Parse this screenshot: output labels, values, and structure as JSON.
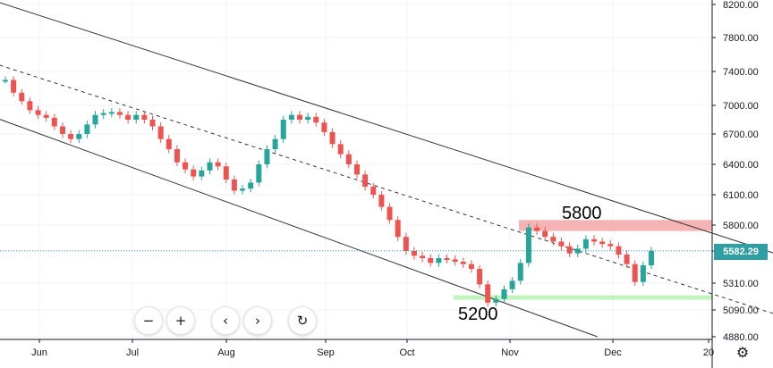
{
  "chart_data": {
    "type": "candlestick",
    "title": "",
    "xlabel": "",
    "ylabel": "",
    "price_axis": {
      "ticks": [
        4880,
        5090,
        5310,
        5580,
        5800,
        6100,
        6400,
        6700,
        7000,
        7400,
        7800,
        8200
      ],
      "tick_labels": [
        "4880.00",
        "5090.00",
        "5310.00",
        "5580.00",
        "5800.00",
        "6100.00",
        "6400.00",
        "6700.00",
        "7000.00",
        "7400.00",
        "7800.00",
        "8200.00"
      ],
      "scale": "log"
    },
    "time_axis": {
      "labels": [
        "Jun",
        "Jul",
        "Aug",
        "Sep",
        "Oct",
        "Nov",
        "Dec",
        "20"
      ]
    },
    "last_price": 5582.29,
    "last_price_label": "5582.29",
    "zones": [
      {
        "label": "5800",
        "low": 5750,
        "high": 5850,
        "color": "#f4a6a6"
      },
      {
        "label": "5200",
        "low": 5175,
        "high": 5210,
        "color": "#b6f2b0"
      }
    ],
    "trendlines": [
      {
        "style": "solid",
        "from": [
          0.5,
          8250
        ],
        "to": [
          9.6,
          5335
        ]
      },
      {
        "style": "dashed",
        "from": [
          0.5,
          7500
        ],
        "to": [
          9.6,
          4850
        ]
      },
      {
        "style": "solid",
        "from": [
          0.5,
          6880
        ],
        "to": [
          6.85,
          4880
        ]
      }
    ],
    "candles": [
      [
        7300,
        7300
      ],
      [
        7300,
        7150
      ],
      [
        7150,
        7050
      ],
      [
        7050,
        6950
      ],
      [
        6950,
        6900
      ],
      [
        6900,
        6870
      ],
      [
        6870,
        6780
      ],
      [
        6780,
        6700
      ],
      [
        6700,
        6650
      ],
      [
        6650,
        6700
      ],
      [
        6700,
        6800
      ],
      [
        6800,
        6900
      ],
      [
        6900,
        6920
      ],
      [
        6920,
        6930
      ],
      [
        6930,
        6900
      ],
      [
        6900,
        6850
      ],
      [
        6850,
        6900
      ],
      [
        6900,
        6850
      ],
      [
        6850,
        6780
      ],
      [
        6780,
        6650
      ],
      [
        6650,
        6550
      ],
      [
        6550,
        6420
      ],
      [
        6420,
        6350
      ],
      [
        6350,
        6280
      ],
      [
        6280,
        6340
      ],
      [
        6340,
        6420
      ],
      [
        6420,
        6380
      ],
      [
        6380,
        6250
      ],
      [
        6250,
        6140
      ],
      [
        6140,
        6160
      ],
      [
        6160,
        6220
      ],
      [
        6220,
        6400
      ],
      [
        6400,
        6550
      ],
      [
        6550,
        6650
      ],
      [
        6650,
        6850
      ],
      [
        6850,
        6900
      ],
      [
        6900,
        6850
      ],
      [
        6850,
        6880
      ],
      [
        6880,
        6820
      ],
      [
        6820,
        6720
      ],
      [
        6720,
        6600
      ],
      [
        6600,
        6500
      ],
      [
        6500,
        6400
      ],
      [
        6400,
        6300
      ],
      [
        6300,
        6180
      ],
      [
        6180,
        6100
      ],
      [
        6100,
        5980
      ],
      [
        5980,
        5850
      ],
      [
        5850,
        5700
      ],
      [
        5700,
        5580
      ],
      [
        5580,
        5540
      ],
      [
        5540,
        5520
      ],
      [
        5520,
        5480
      ],
      [
        5480,
        5520
      ],
      [
        5520,
        5510
      ],
      [
        5510,
        5490
      ],
      [
        5490,
        5470
      ],
      [
        5470,
        5430
      ],
      [
        5430,
        5300
      ],
      [
        5300,
        5150
      ],
      [
        5150,
        5180
      ],
      [
        5180,
        5260
      ],
      [
        5260,
        5330
      ],
      [
        5330,
        5480
      ],
      [
        5480,
        5780
      ],
      [
        5780,
        5750
      ],
      [
        5750,
        5700
      ],
      [
        5700,
        5660
      ],
      [
        5660,
        5620
      ],
      [
        5620,
        5560
      ],
      [
        5560,
        5600
      ],
      [
        5600,
        5680
      ],
      [
        5680,
        5660
      ],
      [
        5660,
        5640
      ],
      [
        5640,
        5620
      ],
      [
        5620,
        5550
      ],
      [
        5550,
        5470
      ],
      [
        5470,
        5320
      ],
      [
        5320,
        5460
      ],
      [
        5460,
        5582
      ]
    ]
  },
  "toolbar": {
    "zoom_out": "−",
    "zoom_in": "+",
    "scroll_left": "‹",
    "scroll_right": "›",
    "reset": "↻"
  },
  "settings_icon": "⚙",
  "colors": {
    "up": "#26a69a",
    "down": "#ef5350",
    "last_price": "#2f9fa6",
    "grid": "#f0f3fa"
  }
}
